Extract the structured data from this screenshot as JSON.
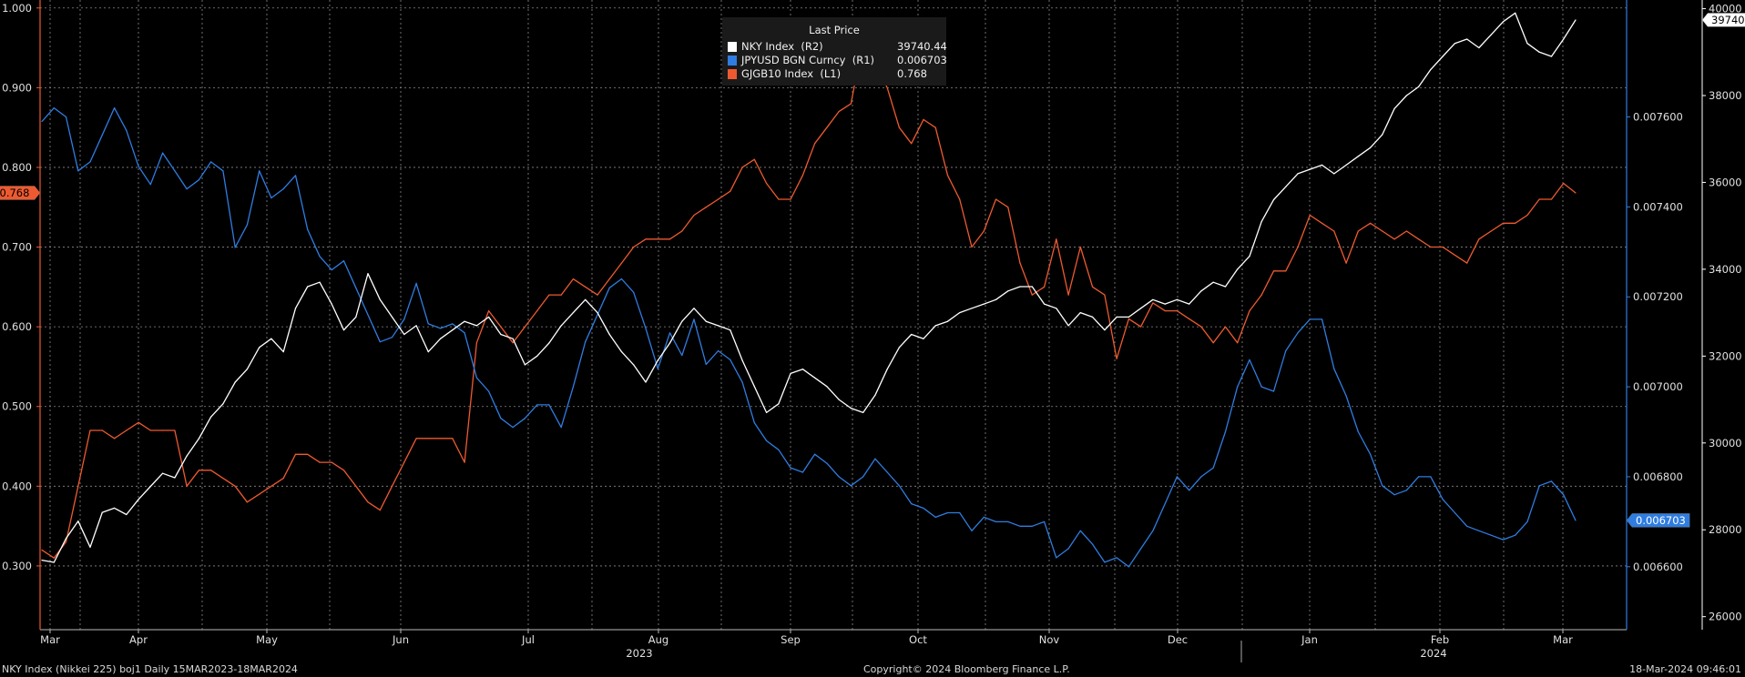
{
  "legend": {
    "title": "Last Price",
    "rows": [
      {
        "name": "NKY Index  (R2)",
        "value": "39740.44",
        "color": "#ffffff"
      },
      {
        "name": "JPYUSD BGN Curncy  (R1)",
        "value": "0.006703",
        "color": "#2f7de1"
      },
      {
        "name": "GJGB10 Index  (L1)",
        "value": "0.768",
        "color": "#ee5a30"
      }
    ]
  },
  "footer": {
    "left": "NKY Index (Nikkei 225) boj1  Daily 15MAR2023-18MAR2024",
    "center": "Copyright© 2024 Bloomberg Finance L.P.",
    "right": "18-Mar-2024 09:46:01"
  },
  "chart_data": {
    "type": "line",
    "colors": {
      "nky": "#ffffff",
      "jpy": "#2f7de1",
      "jgb": "#ee5a30",
      "grid": "#8a8a8a"
    },
    "x_ticks": [
      "Mar",
      "Apr",
      "May",
      "Jun",
      "Jul",
      "Aug",
      "Sep",
      "Oct",
      "Nov",
      "Dec",
      "Jan",
      "Feb",
      "Mar"
    ],
    "year_labels": [
      "2023",
      "2024"
    ],
    "axes": {
      "left": {
        "ticks": [
          "1.000",
          "0.900",
          "0.800",
          "0.700",
          "0.600",
          "0.500",
          "0.400",
          "0.300"
        ],
        "range": [
          0.22,
          1.01
        ],
        "last_value_tag": "0.768"
      },
      "right1": {
        "ticks": [
          "0.007600",
          "0.007400",
          "0.007200",
          "0.007000",
          "0.006800",
          "0.006600"
        ],
        "range": [
          0.00646,
          0.00786
        ],
        "last_value_tag": "0.006703"
      },
      "right2": {
        "ticks": [
          "40000",
          "38000",
          "36000",
          "34000",
          "32000",
          "30000",
          "28000",
          "26000"
        ],
        "range": [
          25700,
          40200
        ],
        "last_value_tag": "39740.44"
      }
    },
    "series": [
      {
        "name": "NKY Index  (R2)",
        "key": "nky",
        "axis": "right2",
        "values": [
          27300,
          27250,
          27800,
          28200,
          27600,
          28400,
          28500,
          28350,
          28700,
          29000,
          29300,
          29200,
          29700,
          30100,
          30600,
          30900,
          31400,
          31700,
          32200,
          32400,
          32100,
          33100,
          33600,
          33700,
          33200,
          32600,
          32900,
          33900,
          33300,
          32900,
          32500,
          32700,
          32100,
          32400,
          32600,
          32800,
          32700,
          32900,
          32500,
          32400,
          31800,
          32000,
          32300,
          32700,
          33000,
          33300,
          33000,
          32500,
          32100,
          31800,
          31400,
          31900,
          32300,
          32800,
          33100,
          32800,
          32700,
          32600,
          31900,
          31300,
          30700,
          30900,
          31600,
          31700,
          31500,
          31300,
          31000,
          30800,
          30700,
          31100,
          31700,
          32200,
          32500,
          32400,
          32700,
          32800,
          33000,
          33100,
          33200,
          33300,
          33500,
          33600,
          33600,
          33200,
          33100,
          32700,
          33000,
          32900,
          32600,
          32900,
          32900,
          33100,
          33300,
          33200,
          33300,
          33200,
          33500,
          33700,
          33600,
          34000,
          34300,
          35100,
          35600,
          35900,
          36200,
          36300,
          36400,
          36200,
          36400,
          36600,
          36800,
          37100,
          37700,
          38000,
          38200,
          38600,
          38900,
          39200,
          39300,
          39100,
          39400,
          39700,
          39900,
          39200,
          39000,
          38900,
          39300,
          39740
        ]
      },
      {
        "name": "JPYUSD BGN Curncy  (R1)",
        "key": "jpy",
        "axis": "right1",
        "values": [
          0.00759,
          0.00762,
          0.0076,
          0.00748,
          0.0075,
          0.00756,
          0.00762,
          0.00757,
          0.00749,
          0.00745,
          0.00752,
          0.00748,
          0.00744,
          0.00746,
          0.0075,
          0.00748,
          0.00731,
          0.00736,
          0.00748,
          0.00742,
          0.00744,
          0.00747,
          0.00735,
          0.00729,
          0.00726,
          0.00728,
          0.00722,
          0.00716,
          0.0071,
          0.00711,
          0.00715,
          0.00723,
          0.00714,
          0.00713,
          0.00714,
          0.00712,
          0.00702,
          0.00699,
          0.00693,
          0.00691,
          0.00693,
          0.00696,
          0.00696,
          0.00691,
          0.007,
          0.0071,
          0.00716,
          0.00722,
          0.00724,
          0.00721,
          0.00713,
          0.00704,
          0.00712,
          0.00707,
          0.00715,
          0.00705,
          0.00708,
          0.00706,
          0.00701,
          0.00692,
          0.00688,
          0.00686,
          0.00682,
          0.00681,
          0.00685,
          0.00683,
          0.0068,
          0.00678,
          0.0068,
          0.00684,
          0.00681,
          0.00678,
          0.00674,
          0.00673,
          0.00671,
          0.00672,
          0.00672,
          0.00668,
          0.00671,
          0.0067,
          0.0067,
          0.00669,
          0.00669,
          0.0067,
          0.00662,
          0.00664,
          0.00668,
          0.00665,
          0.00661,
          0.00662,
          0.0066,
          0.00664,
          0.00668,
          0.00674,
          0.0068,
          0.00677,
          0.0068,
          0.00682,
          0.0069,
          0.007,
          0.00706,
          0.007,
          0.00699,
          0.00708,
          0.00712,
          0.00715,
          0.00715,
          0.00704,
          0.00698,
          0.0069,
          0.00685,
          0.00678,
          0.00676,
          0.00677,
          0.0068,
          0.0068,
          0.00675,
          0.00672,
          0.00669,
          0.00668,
          0.00667,
          0.00666,
          0.00667,
          0.0067,
          0.00678,
          0.00679,
          0.00676,
          0.006703
        ]
      },
      {
        "name": "GJGB10 Index  (L1)",
        "key": "jgb",
        "axis": "left",
        "values": [
          0.32,
          0.31,
          0.33,
          0.4,
          0.47,
          0.47,
          0.46,
          0.47,
          0.48,
          0.47,
          0.47,
          0.47,
          0.4,
          0.42,
          0.42,
          0.41,
          0.4,
          0.38,
          0.39,
          0.4,
          0.41,
          0.44,
          0.44,
          0.43,
          0.43,
          0.42,
          0.4,
          0.38,
          0.37,
          0.4,
          0.43,
          0.46,
          0.46,
          0.46,
          0.46,
          0.43,
          0.58,
          0.62,
          0.6,
          0.58,
          0.6,
          0.62,
          0.64,
          0.64,
          0.66,
          0.65,
          0.64,
          0.66,
          0.68,
          0.7,
          0.71,
          0.71,
          0.71,
          0.72,
          0.74,
          0.75,
          0.76,
          0.77,
          0.8,
          0.81,
          0.78,
          0.76,
          0.76,
          0.79,
          0.83,
          0.85,
          0.87,
          0.88,
          0.96,
          0.93,
          0.9,
          0.85,
          0.83,
          0.86,
          0.85,
          0.79,
          0.76,
          0.7,
          0.72,
          0.76,
          0.75,
          0.68,
          0.64,
          0.65,
          0.71,
          0.64,
          0.7,
          0.65,
          0.64,
          0.56,
          0.61,
          0.6,
          0.63,
          0.62,
          0.62,
          0.61,
          0.6,
          0.58,
          0.6,
          0.58,
          0.62,
          0.64,
          0.67,
          0.67,
          0.7,
          0.74,
          0.73,
          0.72,
          0.68,
          0.72,
          0.73,
          0.72,
          0.71,
          0.72,
          0.71,
          0.7,
          0.7,
          0.69,
          0.68,
          0.71,
          0.72,
          0.73,
          0.73,
          0.74,
          0.76,
          0.76,
          0.78,
          0.768
        ]
      }
    ]
  }
}
